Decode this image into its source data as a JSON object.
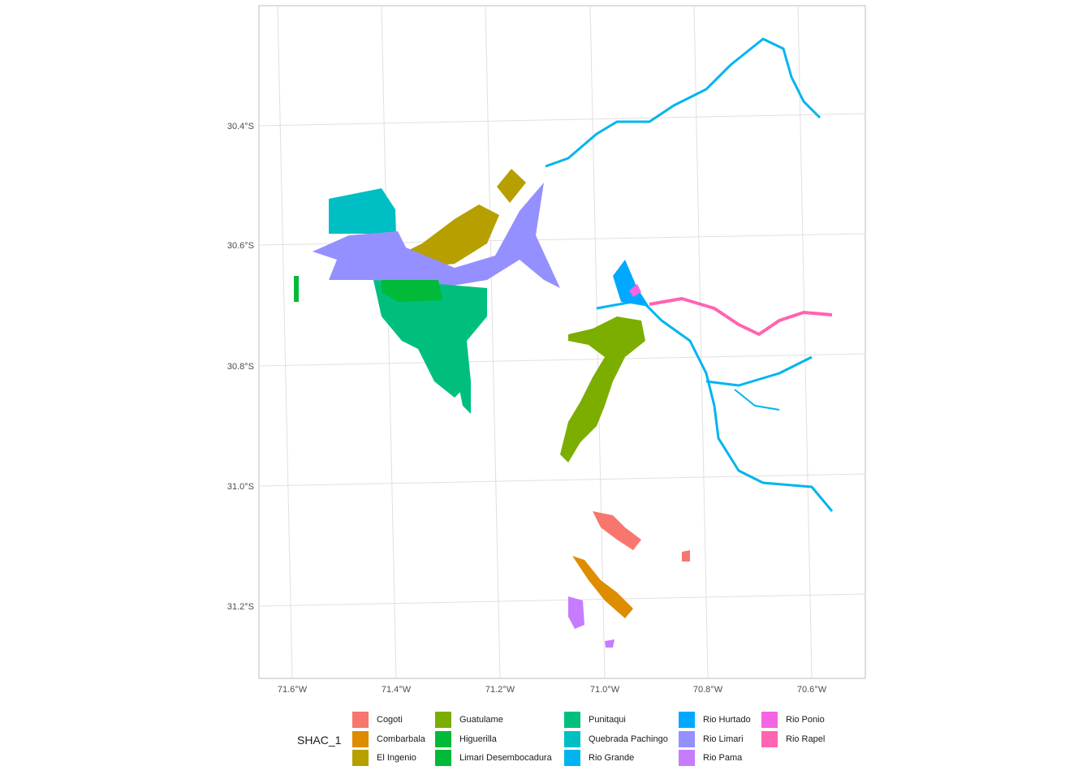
{
  "map": {
    "lon_ticks": [
      "71.6°W",
      "71.4°W",
      "71.2°W",
      "71.0°W",
      "70.8°W",
      "70.6°W"
    ],
    "lat_ticks": [
      "30.4°S",
      "30.6°S",
      "30.8°S",
      "31.0°S",
      "31.2°S"
    ]
  },
  "legend": {
    "title": "SHAC_1",
    "items": [
      {
        "label": "Cogoti",
        "color": "#F8766D"
      },
      {
        "label": "Combarbala",
        "color": "#DE8C00"
      },
      {
        "label": "El Ingenio",
        "color": "#B79F00"
      },
      {
        "label": "Guatulame",
        "color": "#7CAE00"
      },
      {
        "label": "Higuerilla",
        "color": "#00BA38"
      },
      {
        "label": "Limari Desembocadura",
        "color": "#00BA38"
      },
      {
        "label": "Punitaqui",
        "color": "#00BF7D"
      },
      {
        "label": "Quebrada Pachingo",
        "color": "#00BFC4"
      },
      {
        "label": "Rio Grande",
        "color": "#00B4F0"
      },
      {
        "label": "Rio Hurtado",
        "color": "#00A9FF"
      },
      {
        "label": "Rio Limari",
        "color": "#9590FF"
      },
      {
        "label": "Rio Pama",
        "color": "#C77CFF"
      },
      {
        "label": "Rio Ponio",
        "color": "#F564E3"
      },
      {
        "label": "Rio Rapel",
        "color": "#FF64B0"
      }
    ]
  }
}
